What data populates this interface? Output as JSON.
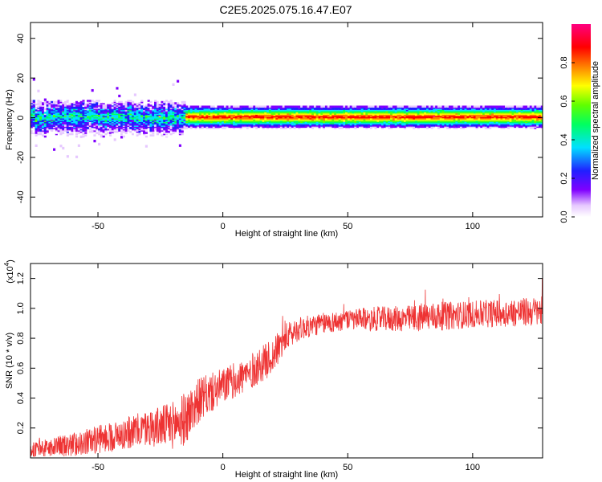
{
  "title": "C2E5.2025.075.16.47.E07",
  "chart_data": [
    {
      "type": "heatmap",
      "xlabel": "Height of straight line (km)",
      "ylabel": "Frequency (Hz)",
      "xlim": [
        -77,
        128
      ],
      "ylim": [
        -50,
        48
      ],
      "xticks": [
        -50,
        0,
        50,
        100
      ],
      "yticks": [
        -40,
        -20,
        0,
        20,
        40
      ],
      "colorbar": {
        "label": "Normalized spectral amplitude",
        "range": [
          0.0,
          1.0
        ],
        "ticks": [
          "0.0",
          "0.2",
          "0.4",
          "0.6",
          "0.8"
        ],
        "colormap": "rainbow (white-violet-blue-cyan-green-yellow-red-magenta)"
      },
      "description_values": {
        "band_center_hz": 1,
        "band_halfwidth_hz_left": 6,
        "band_halfwidth_hz_right": 2,
        "spread_region_km": [
          -77,
          -15
        ],
        "high_amplitude_region_km": [
          -15,
          128
        ]
      }
    },
    {
      "type": "line",
      "xlabel": "Height of straight line (km)",
      "ylabel": "SNR (10 * v/v)",
      "yscale_label": "(x10",
      "yscale_exponent": "4",
      "xlim": [
        -77,
        128
      ],
      "ylim": [
        0,
        1.3
      ],
      "xticks": [
        -50,
        0,
        50,
        100
      ],
      "yticks": [
        0.2,
        0.4,
        0.6,
        0.8,
        1.0,
        1.2
      ],
      "series": [
        {
          "color": "#ee3333",
          "trend_x": [
            -77,
            -60,
            -45,
            -30,
            -20,
            -15,
            -10,
            0,
            10,
            20,
            25,
            30,
            40,
            50,
            60,
            75,
            80,
            100,
            128
          ],
          "trend_y": [
            0.05,
            0.09,
            0.14,
            0.2,
            0.22,
            0.26,
            0.38,
            0.48,
            0.56,
            0.68,
            0.8,
            0.86,
            0.9,
            0.92,
            0.93,
            0.93,
            0.94,
            0.96,
            0.98
          ],
          "noise": [
            0.05,
            0.08,
            0.1,
            0.12,
            0.16,
            0.18,
            0.15,
            0.12,
            0.12,
            0.12,
            0.1,
            0.08,
            0.07,
            0.07,
            0.08,
            0.09,
            0.1,
            0.09,
            0.1
          ]
        }
      ]
    }
  ]
}
